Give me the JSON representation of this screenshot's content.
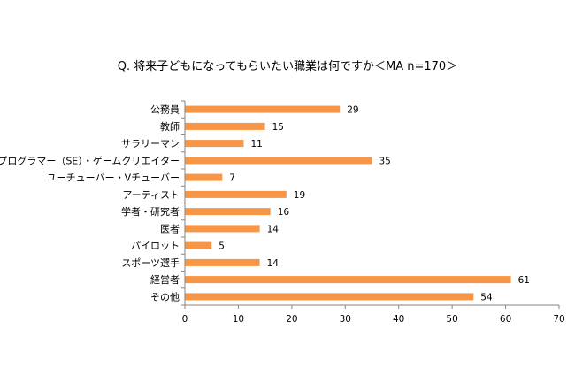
{
  "chart_data": {
    "type": "bar",
    "orientation": "horizontal",
    "title": "Q. 将来子どもになってもらいたい職業は何ですか＜MA n=170＞",
    "xlabel": "",
    "ylabel": "",
    "categories": [
      "公務員",
      "教師",
      "サラリーマン",
      "プログラマー（SE）・ゲームクリエイター",
      "ユーチューバー・Vチューバー",
      "アーティスト",
      "学者・研究者",
      "医者",
      "パイロット",
      "スポーツ選手",
      "経営者",
      "その他"
    ],
    "values": [
      29,
      15,
      11,
      35,
      7,
      19,
      16,
      14,
      5,
      14,
      61,
      54
    ],
    "xlim": [
      0,
      70
    ],
    "xticks": [
      0,
      10,
      20,
      30,
      40,
      50,
      60,
      70
    ],
    "bar_color": "#F79646",
    "axis_color": "#868686",
    "grid": false,
    "legend": "none"
  }
}
